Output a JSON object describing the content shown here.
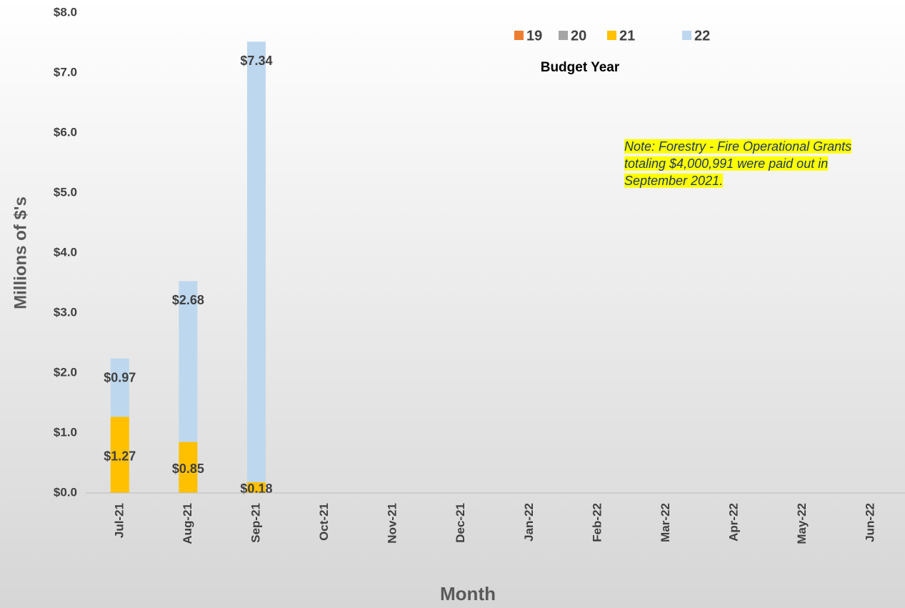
{
  "chart_data": {
    "type": "stacked_bar",
    "y_axis_label": "Millions of $'s",
    "x_axis_label": "Month",
    "legend_title": "Budget Year",
    "legend_position": "top",
    "annotation": [
      "Note: Forestry  - Fire Operational Grants",
      "totaling $4,000,991 were paid out in",
      "September 2021."
    ],
    "categories": [
      "Jul-21",
      "Aug-21",
      "Sep-21",
      "Oct-21",
      "Nov-21",
      "Dec-21",
      "Jan-22",
      "Feb-22",
      "Mar-22",
      "Apr-22",
      "May-22",
      "Jun-22"
    ],
    "series": [
      {
        "name": "19",
        "color": "#ed7d31",
        "values": [
          null,
          null,
          null,
          null,
          null,
          null,
          null,
          null,
          null,
          null,
          null,
          null
        ]
      },
      {
        "name": "20",
        "color": "#a5a5a5",
        "values": [
          null,
          null,
          null,
          null,
          null,
          null,
          null,
          null,
          null,
          null,
          null,
          null
        ]
      },
      {
        "name": "21",
        "color": "#ffc000",
        "values": [
          1.27,
          0.85,
          0.18,
          null,
          null,
          null,
          null,
          null,
          null,
          null,
          null,
          null
        ],
        "value_labels": [
          "$1.27",
          "$0.85",
          "$0.18",
          null,
          null,
          null,
          null,
          null,
          null,
          null,
          null,
          null
        ]
      },
      {
        "name": "22",
        "color": "#bdd7ee",
        "values": [
          0.97,
          2.68,
          7.34,
          null,
          null,
          null,
          null,
          null,
          null,
          null,
          null,
          null
        ],
        "value_labels": [
          "$0.97",
          "$2.68",
          "$7.34",
          null,
          null,
          null,
          null,
          null,
          null,
          null,
          null,
          null
        ]
      }
    ],
    "ylim": [
      0,
      8
    ],
    "yticks": [
      {
        "value": 0,
        "label": "$0.0"
      },
      {
        "value": 1,
        "label": "$1.0"
      },
      {
        "value": 2,
        "label": "$2.0"
      },
      {
        "value": 3,
        "label": "$3.0"
      },
      {
        "value": 4,
        "label": "$4.0"
      },
      {
        "value": 5,
        "label": "$5.0"
      },
      {
        "value": 6,
        "label": "$6.0"
      },
      {
        "value": 7,
        "label": "$7.0"
      },
      {
        "value": 8,
        "label": "$8.0"
      }
    ],
    "grid": false
  }
}
